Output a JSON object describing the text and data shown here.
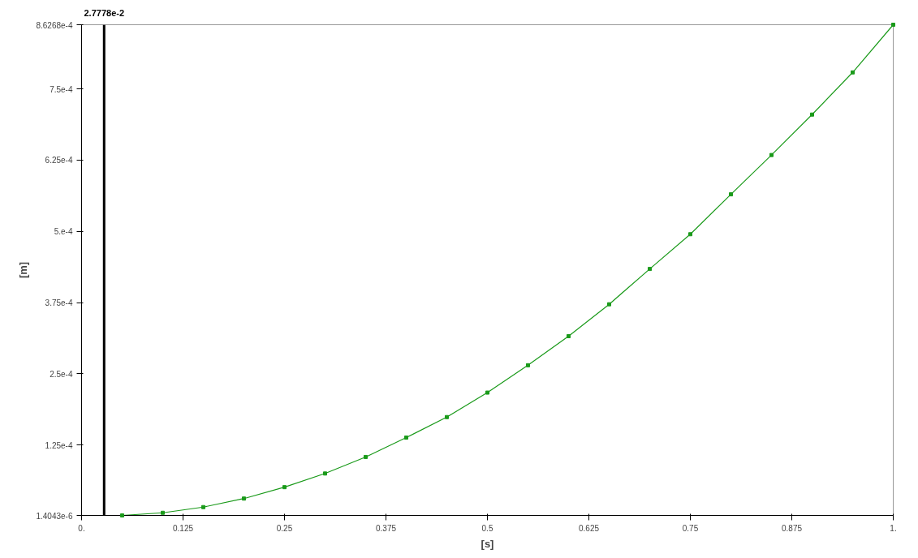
{
  "chart_data": {
    "type": "line",
    "xlabel": "[s]",
    "ylabel": "[m]",
    "x": [
      0.05,
      0.1,
      0.15,
      0.2,
      0.25,
      0.3,
      0.35,
      0.4,
      0.45,
      0.5,
      0.55,
      0.6,
      0.65,
      0.7,
      0.75,
      0.8,
      0.85,
      0.9,
      0.95,
      1.0
    ],
    "series": [
      {
        "color": "#1a9a1a",
        "values": [
          1.4043e-06,
          6e-06,
          1.6e-05,
          3.1e-05,
          5.1e-05,
          7.5e-05,
          0.000104,
          0.000138,
          0.000174,
          0.000217,
          0.000265,
          0.000316,
          0.000372,
          0.000434,
          0.000495,
          0.000565,
          0.000634,
          0.000705,
          0.000779,
          0.00086268
        ]
      }
    ],
    "xlim": [
      0,
      1
    ],
    "xticks": [
      {
        "value": 0,
        "label": "0."
      },
      0.125,
      0.25,
      0.375,
      {
        "value": 0.5,
        "label": "0.5"
      },
      0.625,
      0.75,
      0.875,
      {
        "value": 1,
        "label": "1."
      }
    ],
    "ylim": [
      1.4043e-06,
      0.00086268
    ],
    "yticks": [
      {
        "value": 1.4043e-06,
        "label": "1.4043e-6"
      },
      {
        "value": 0.000125,
        "label": "1.25e-4"
      },
      {
        "value": 0.00025,
        "label": "2.5e-4"
      },
      {
        "value": 0.000375,
        "label": "3.75e-4"
      },
      {
        "value": 0.0005,
        "label": "5.e-4"
      },
      {
        "value": 0.000625,
        "label": "6.25e-4"
      },
      {
        "value": 0.00075,
        "label": "7.5e-4"
      },
      {
        "value": 0.00086268,
        "label": "8.6268e-4"
      }
    ],
    "ref_lines": [
      {
        "axis": "x",
        "value": 0.027778,
        "label": "2.7778e-2",
        "color": "#000000"
      }
    ],
    "marker": "square",
    "grid": false
  }
}
